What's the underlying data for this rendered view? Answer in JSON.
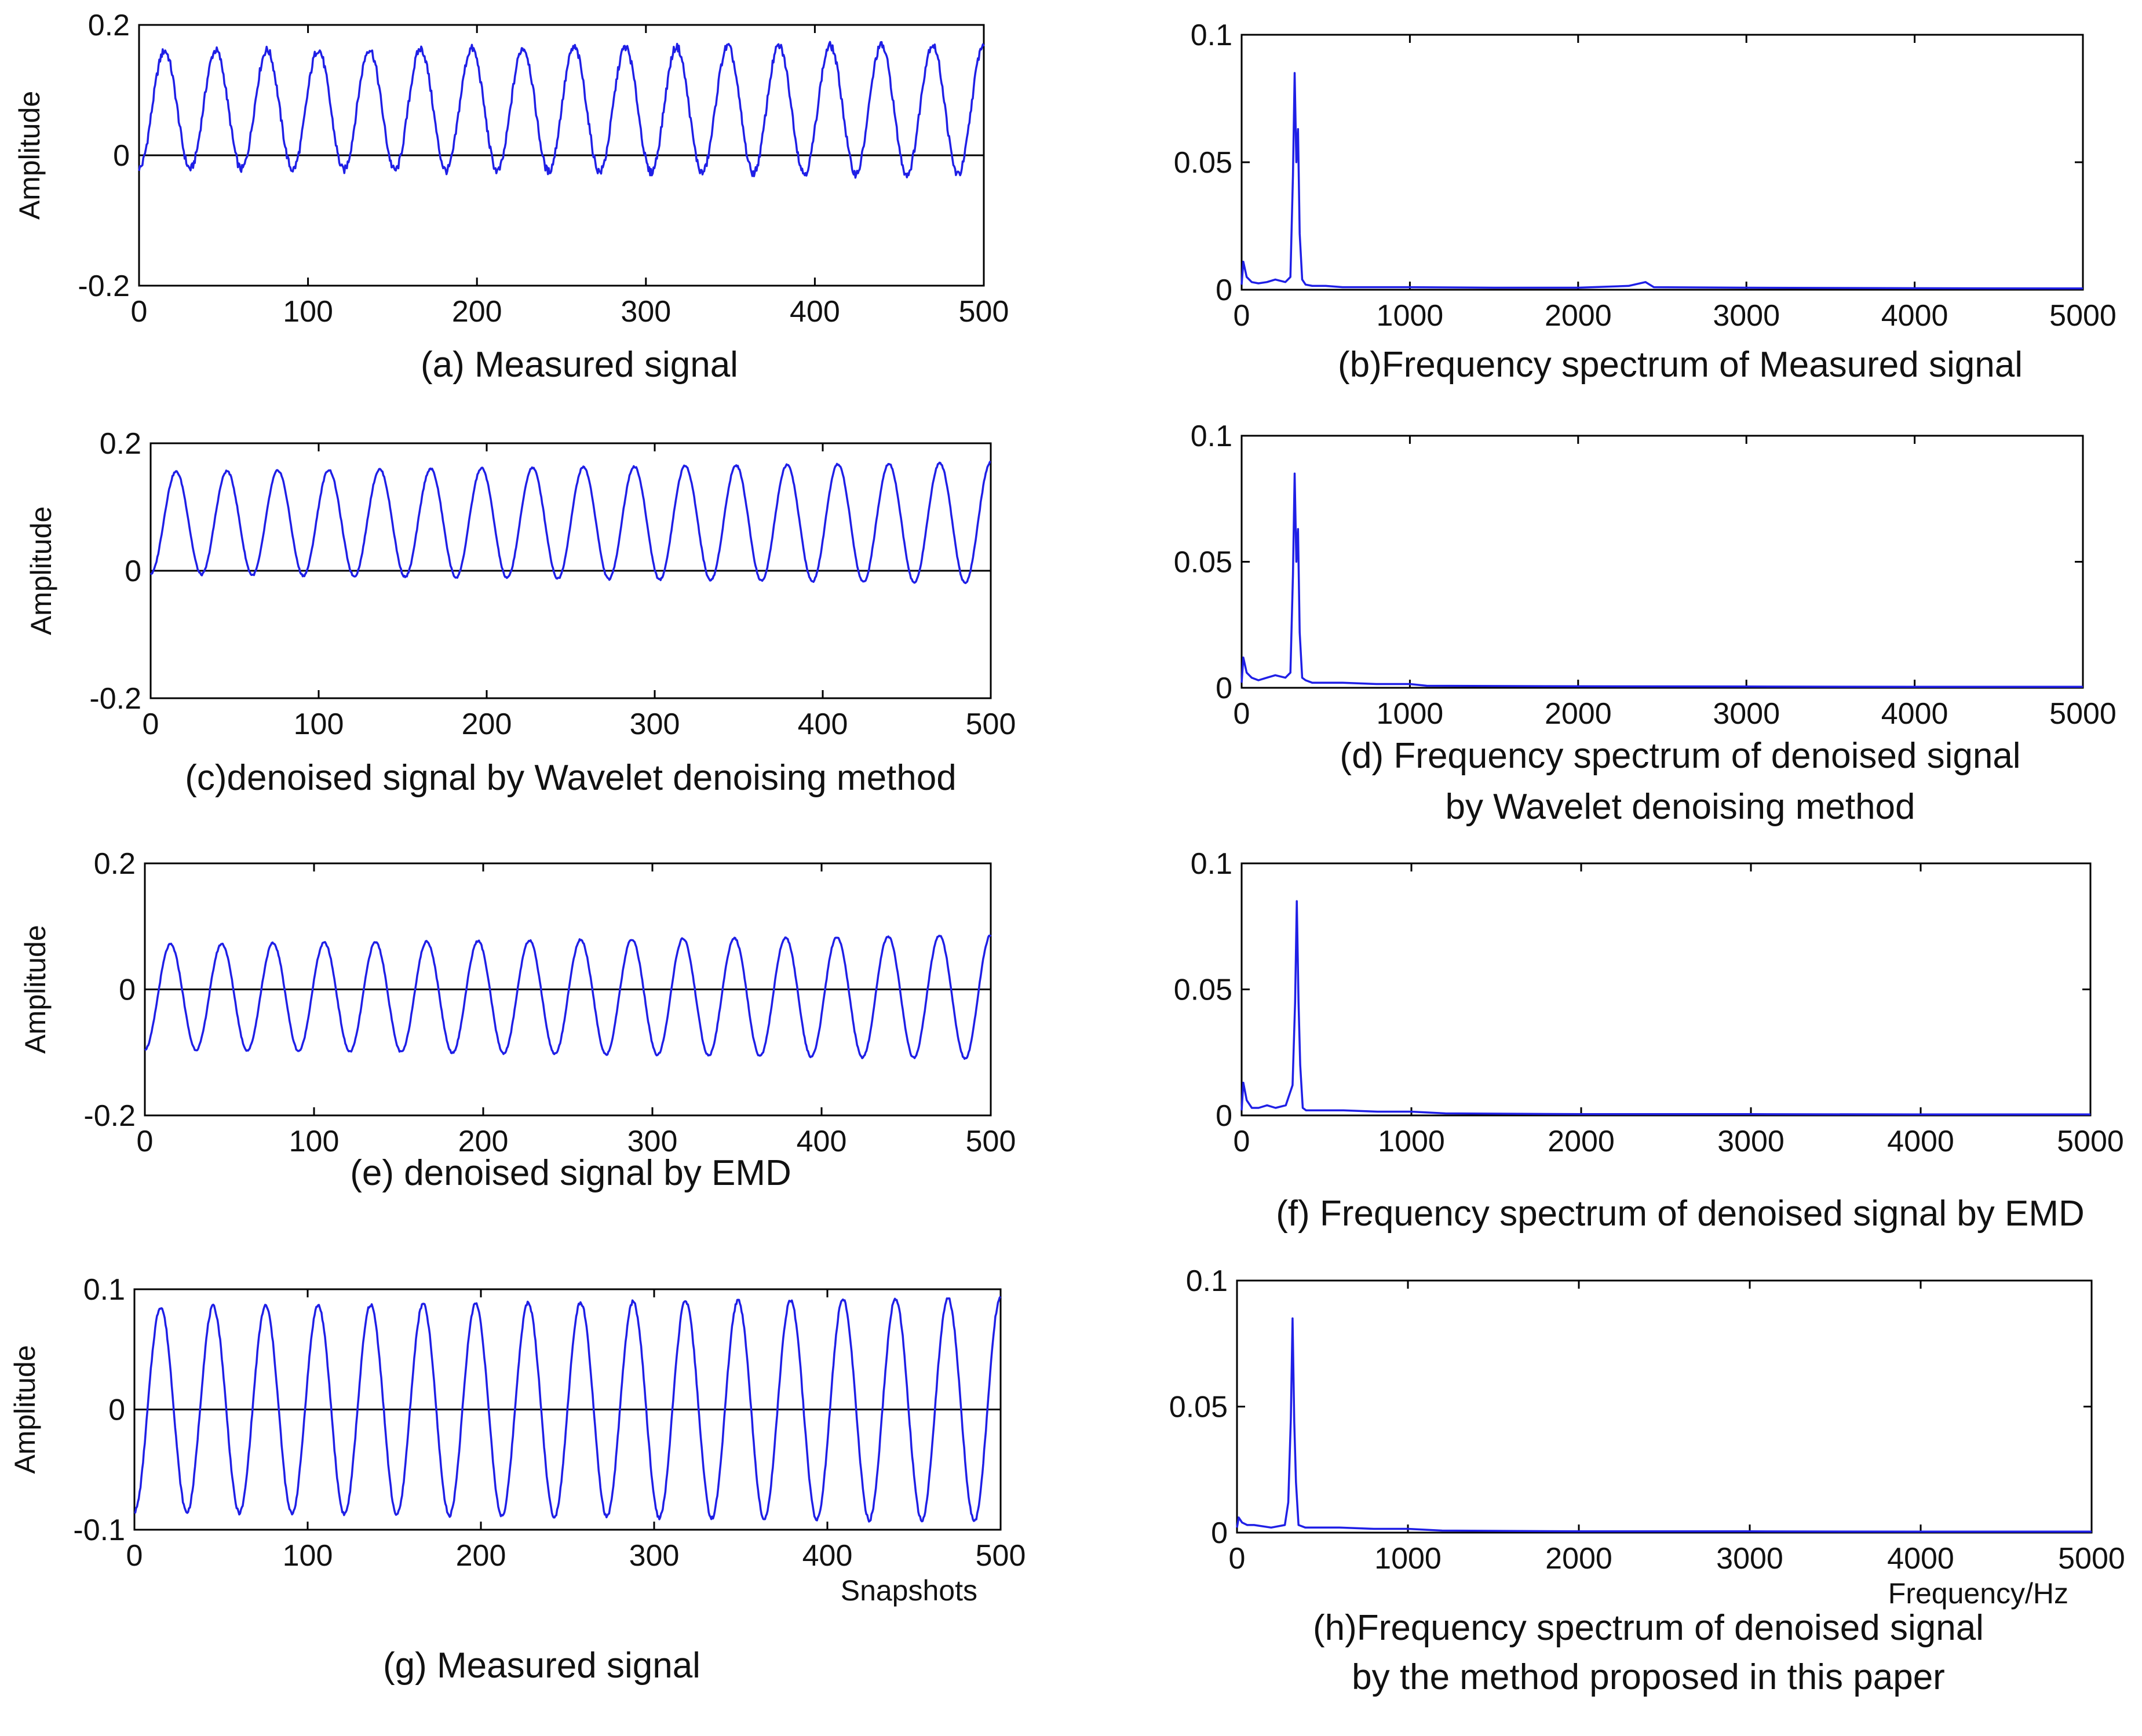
{
  "colors": {
    "signal": "#1f1fe6",
    "axis": "#000000",
    "zero_line": "#000000",
    "background": "#ffffff"
  },
  "chart_data": [
    {
      "id": "a",
      "type": "line",
      "caption": "(a)  Measured signal",
      "xlabel": "",
      "ylabel": "Amplitude",
      "xlim": [
        0,
        500
      ],
      "ylim": [
        -0.2,
        0.2
      ],
      "xticks": [
        "0",
        "100",
        "200",
        "300",
        "400",
        "500"
      ],
      "yticks": [
        "-0.2",
        "0",
        "0.2"
      ],
      "zero_line": true,
      "series": [
        {
          "name": "signal",
          "kind": "sine",
          "period": 30.3,
          "phase_deg": -90,
          "offset": 0.07,
          "amplitude": 0.09,
          "amplitude_end": 0.1,
          "noise": 0.006
        }
      ]
    },
    {
      "id": "b",
      "type": "line",
      "caption": "(b)Frequency spectrum of Measured signal",
      "xlabel": "",
      "ylabel": "",
      "xlim": [
        0,
        5000
      ],
      "ylim": [
        0,
        0.1
      ],
      "xticks": [
        "0",
        "1000",
        "2000",
        "3000",
        "4000",
        "5000"
      ],
      "yticks": [
        "0",
        "0.05",
        "0.1"
      ],
      "zero_line": false,
      "series": [
        {
          "name": "spectrum",
          "kind": "spectrum",
          "x": [
            0,
            10,
            30,
            60,
            100,
            150,
            200,
            260,
            290,
            305,
            315,
            325,
            335,
            345,
            360,
            380,
            420,
            500,
            600,
            800,
            1000,
            1500,
            2000,
            2300,
            2400,
            2450,
            3000,
            4000,
            5000
          ],
          "y": [
            0.002,
            0.011,
            0.005,
            0.003,
            0.0025,
            0.003,
            0.004,
            0.003,
            0.005,
            0.045,
            0.085,
            0.05,
            0.063,
            0.022,
            0.004,
            0.002,
            0.0015,
            0.0015,
            0.001,
            0.001,
            0.001,
            0.0008,
            0.0008,
            0.0015,
            0.003,
            0.001,
            0.0008,
            0.0006,
            0.0005
          ]
        }
      ]
    },
    {
      "id": "c",
      "type": "line",
      "caption": "(c)denoised signal by Wavelet denoising method",
      "xlabel": "",
      "ylabel": "Amplitude",
      "xlim": [
        0,
        500
      ],
      "ylim": [
        -0.2,
        0.2
      ],
      "xticks": [
        "0",
        "100",
        "200",
        "300",
        "400",
        "500"
      ],
      "yticks": [
        "-0.2",
        "0",
        "0.2"
      ],
      "zero_line": true,
      "series": [
        {
          "name": "signal",
          "kind": "sine",
          "period": 30.3,
          "phase_deg": -90,
          "offset": 0.075,
          "amplitude": 0.08,
          "amplitude_end": 0.095,
          "noise": 0.0015
        }
      ]
    },
    {
      "id": "d",
      "type": "line",
      "caption": "(d) Frequency spectrum of denoised signal",
      "caption2": "by Wavelet denoising method",
      "xlabel": "",
      "ylabel": "",
      "xlim": [
        0,
        5000
      ],
      "ylim": [
        0,
        0.1
      ],
      "xticks": [
        "0",
        "1000",
        "2000",
        "3000",
        "4000",
        "5000"
      ],
      "yticks": [
        "0",
        "0.05",
        "0.1"
      ],
      "zero_line": false,
      "series": [
        {
          "name": "spectrum",
          "kind": "spectrum",
          "x": [
            0,
            10,
            30,
            60,
            100,
            150,
            200,
            260,
            290,
            305,
            315,
            325,
            335,
            345,
            360,
            380,
            420,
            600,
            800,
            1000,
            1100,
            2000,
            3000,
            4000,
            5000
          ],
          "y": [
            0.002,
            0.012,
            0.006,
            0.004,
            0.003,
            0.004,
            0.005,
            0.004,
            0.006,
            0.045,
            0.085,
            0.05,
            0.063,
            0.022,
            0.004,
            0.003,
            0.002,
            0.002,
            0.0015,
            0.0015,
            0.0008,
            0.0006,
            0.0005,
            0.0004,
            0.0004
          ]
        }
      ]
    },
    {
      "id": "e",
      "type": "line",
      "caption": "(e) denoised signal by EMD",
      "xlabel": "",
      "ylabel": "Amplitude",
      "xlim": [
        0,
        500
      ],
      "ylim": [
        -0.2,
        0.2
      ],
      "xticks": [
        "0",
        "100",
        "200",
        "300",
        "400",
        "500"
      ],
      "yticks": [
        "-0.2",
        "0",
        "0.2"
      ],
      "zero_line": true,
      "series": [
        {
          "name": "signal",
          "kind": "sine",
          "period": 30.3,
          "phase_deg": -90,
          "offset": -0.012,
          "amplitude": 0.083,
          "amplitude_end": 0.098,
          "noise": 0.0015
        }
      ]
    },
    {
      "id": "f",
      "type": "line",
      "caption": "(f) Frequency spectrum of denoised signal by  EMD",
      "xlabel": "",
      "ylabel": "",
      "xlim": [
        0,
        5000
      ],
      "ylim": [
        0,
        0.1
      ],
      "xticks": [
        "0",
        "1000",
        "2000",
        "3000",
        "4000",
        "5000"
      ],
      "yticks": [
        "0",
        "0.05",
        "0.1"
      ],
      "zero_line": false,
      "series": [
        {
          "name": "spectrum",
          "kind": "spectrum",
          "x": [
            0,
            10,
            30,
            60,
            100,
            150,
            200,
            260,
            300,
            315,
            325,
            335,
            345,
            360,
            380,
            420,
            600,
            800,
            1000,
            1200,
            2000,
            3000,
            4000,
            5000
          ],
          "y": [
            0.002,
            0.013,
            0.006,
            0.003,
            0.003,
            0.004,
            0.003,
            0.004,
            0.012,
            0.045,
            0.085,
            0.045,
            0.02,
            0.003,
            0.002,
            0.002,
            0.002,
            0.0015,
            0.0015,
            0.0008,
            0.0005,
            0.0005,
            0.0004,
            0.0004
          ]
        }
      ]
    },
    {
      "id": "g",
      "type": "line",
      "caption": "(g) Measured signal",
      "xlabel": "Snapshots",
      "ylabel": "Amplitude",
      "xlim": [
        0,
        500
      ],
      "ylim": [
        -0.1,
        0.1
      ],
      "xticks": [
        "0",
        "100",
        "200",
        "300",
        "400",
        "500"
      ],
      "yticks": [
        "-0.1",
        "0",
        "0.1"
      ],
      "zero_line": true,
      "series": [
        {
          "name": "signal",
          "kind": "sine",
          "period": 30.3,
          "phase_deg": -90,
          "offset": 0.0,
          "amplitude": 0.085,
          "amplitude_end": 0.093,
          "noise": 0.0015
        }
      ]
    },
    {
      "id": "h",
      "type": "line",
      "caption": "(h)Frequency spectrum of denoised signal",
      "caption2": "by the method proposed in this paper",
      "xlabel": "Frequency/Hz",
      "ylabel": "",
      "xlim": [
        0,
        5000
      ],
      "ylim": [
        0,
        0.1
      ],
      "xticks": [
        "0",
        "1000",
        "2000",
        "3000",
        "4000",
        "5000"
      ],
      "yticks": [
        "0",
        "0.05",
        "0.1"
      ],
      "zero_line": false,
      "series": [
        {
          "name": "spectrum",
          "kind": "spectrum",
          "x": [
            0,
            10,
            30,
            60,
            100,
            200,
            280,
            300,
            315,
            325,
            335,
            345,
            360,
            400,
            600,
            800,
            1000,
            1200,
            2000,
            3000,
            4000,
            5000
          ],
          "y": [
            0.002,
            0.006,
            0.004,
            0.003,
            0.003,
            0.002,
            0.003,
            0.012,
            0.045,
            0.085,
            0.044,
            0.02,
            0.003,
            0.002,
            0.002,
            0.0015,
            0.0015,
            0.0008,
            0.0005,
            0.0005,
            0.0004,
            0.0004
          ]
        }
      ]
    }
  ]
}
